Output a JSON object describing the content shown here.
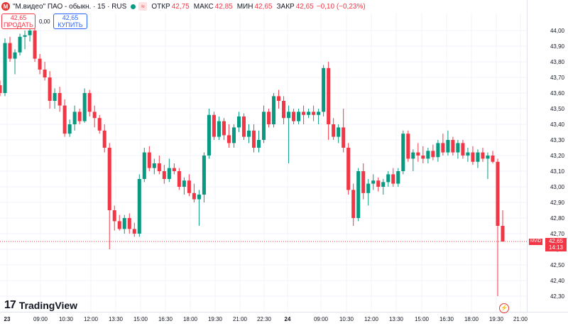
{
  "header": {
    "logo_letter": "М",
    "title": "\"М.видео\" ПАО - обыкн. · 15 · RUS",
    "wave_icon": "≈",
    "open_label": "ОТКР",
    "open_value": "42,75",
    "high_label": "МАКС",
    "high_value": "42,85",
    "low_label": "МИН",
    "low_value": "42,65",
    "close_label": "ЗАКР",
    "close_value": "42,65",
    "change": "−0,10 (−0,23%)"
  },
  "trade": {
    "sell_price": "42,65",
    "sell_label": "ПРОДАТЬ",
    "spread": "0,00",
    "buy_price": "42,65",
    "buy_label": "КУПИТЬ"
  },
  "branding": {
    "logo_mark": "17",
    "name": "TradingView"
  },
  "flash_icon": "⚡",
  "last_price": {
    "symbol": "MVID",
    "price": "42,65",
    "countdown": "14:13"
  },
  "colors": {
    "up": "#089981",
    "down": "#f23645"
  },
  "chart_data": {
    "type": "candlestick",
    "timeframe": "15",
    "ylim": [
      42.22,
      44.06
    ],
    "yticks": [
      "44,00",
      "43,90",
      "43,80",
      "43,70",
      "43,60",
      "43,50",
      "43,40",
      "43,30",
      "43,20",
      "43,10",
      "43,00",
      "42,90",
      "42,80",
      "42,70",
      "42,60",
      "42,50",
      "42,40",
      "42,30"
    ],
    "xticks": [
      "23",
      "09:00",
      "10:30",
      "12:00",
      "13:30",
      "15:00",
      "16:30",
      "18:00",
      "19:30",
      "21:00",
      "22:30",
      "24",
      "09:00",
      "10:30",
      "12:00",
      "13:30",
      "15:00",
      "16:30",
      "18:00",
      "19:30",
      "21:00"
    ],
    "last_price": 42.65,
    "candles": [
      [
        43.65,
        43.68,
        43.58,
        43.6
      ],
      [
        43.6,
        43.95,
        43.58,
        43.92
      ],
      [
        43.92,
        43.96,
        43.8,
        43.82
      ],
      [
        43.82,
        43.88,
        43.72,
        43.86
      ],
      [
        43.86,
        43.98,
        43.84,
        43.96
      ],
      [
        43.96,
        44.0,
        43.88,
        43.97
      ],
      [
        43.97,
        44.02,
        43.93,
        44.0
      ],
      [
        44.0,
        44.02,
        43.8,
        43.82
      ],
      [
        43.82,
        43.85,
        43.72,
        43.75
      ],
      [
        43.75,
        43.8,
        43.68,
        43.7
      ],
      [
        43.7,
        43.74,
        43.5,
        43.55
      ],
      [
        43.55,
        43.63,
        43.5,
        43.6
      ],
      [
        43.6,
        43.64,
        43.48,
        43.52
      ],
      [
        43.52,
        43.56,
        43.32,
        43.34
      ],
      [
        43.34,
        43.43,
        43.32,
        43.4
      ],
      [
        43.4,
        43.52,
        43.36,
        43.48
      ],
      [
        43.48,
        43.5,
        43.4,
        43.42
      ],
      [
        43.42,
        43.63,
        43.41,
        43.6
      ],
      [
        43.6,
        43.62,
        43.45,
        43.48
      ],
      [
        43.48,
        43.52,
        43.38,
        43.44
      ],
      [
        43.44,
        43.46,
        43.34,
        43.36
      ],
      [
        43.36,
        43.4,
        43.22,
        43.25
      ],
      [
        43.25,
        43.28,
        42.6,
        42.85
      ],
      [
        42.85,
        42.88,
        42.72,
        42.78
      ],
      [
        42.78,
        42.82,
        42.72,
        42.73
      ],
      [
        42.73,
        42.82,
        42.7,
        42.8
      ],
      [
        42.8,
        42.83,
        42.7,
        42.73
      ],
      [
        42.73,
        42.77,
        42.68,
        42.7
      ],
      [
        42.7,
        43.08,
        42.68,
        43.05
      ],
      [
        43.05,
        43.25,
        43.03,
        43.22
      ],
      [
        43.22,
        43.26,
        43.1,
        43.12
      ],
      [
        43.12,
        43.18,
        43.08,
        43.15
      ],
      [
        43.15,
        43.2,
        43.08,
        43.1
      ],
      [
        43.1,
        43.14,
        43.02,
        43.05
      ],
      [
        43.05,
        43.18,
        43.03,
        43.12
      ],
      [
        43.12,
        43.15,
        43.08,
        43.1
      ],
      [
        43.1,
        43.12,
        42.98,
        43.0
      ],
      [
        43.0,
        43.06,
        42.95,
        43.04
      ],
      [
        43.04,
        43.08,
        42.94,
        42.96
      ],
      [
        42.96,
        43.02,
        42.9,
        42.92
      ],
      [
        42.92,
        42.98,
        42.75,
        42.95
      ],
      [
        42.95,
        43.22,
        42.9,
        43.2
      ],
      [
        43.2,
        43.5,
        43.18,
        43.46
      ],
      [
        43.46,
        43.48,
        43.3,
        43.32
      ],
      [
        43.32,
        43.45,
        43.3,
        43.42
      ],
      [
        43.42,
        43.44,
        43.3,
        43.33
      ],
      [
        43.33,
        43.4,
        43.25,
        43.28
      ],
      [
        43.28,
        43.4,
        43.25,
        43.38
      ],
      [
        43.38,
        43.48,
        43.35,
        43.45
      ],
      [
        43.45,
        43.47,
        43.3,
        43.32
      ],
      [
        43.32,
        43.4,
        43.28,
        43.36
      ],
      [
        43.36,
        43.4,
        43.22,
        43.25
      ],
      [
        43.25,
        43.36,
        43.22,
        43.3
      ],
      [
        43.3,
        43.52,
        43.28,
        43.48
      ],
      [
        43.48,
        43.5,
        43.38,
        43.4
      ],
      [
        43.4,
        43.6,
        43.38,
        43.58
      ],
      [
        43.58,
        43.62,
        43.5,
        43.55
      ],
      [
        43.55,
        43.58,
        43.4,
        43.44
      ],
      [
        43.44,
        43.52,
        43.15,
        43.48
      ],
      [
        43.48,
        43.5,
        43.4,
        43.42
      ],
      [
        43.42,
        43.5,
        43.4,
        43.48
      ],
      [
        43.48,
        43.52,
        43.4,
        43.46
      ],
      [
        43.46,
        43.5,
        43.44,
        43.48
      ],
      [
        43.48,
        43.52,
        43.42,
        43.46
      ],
      [
        43.46,
        43.5,
        43.4,
        43.48
      ],
      [
        43.48,
        43.78,
        43.45,
        43.76
      ],
      [
        43.76,
        43.8,
        43.3,
        43.4
      ],
      [
        43.4,
        43.44,
        43.3,
        43.32
      ],
      [
        43.32,
        43.4,
        43.28,
        43.38
      ],
      [
        43.38,
        43.5,
        43.22,
        43.25
      ],
      [
        43.25,
        43.28,
        42.95,
        42.98
      ],
      [
        42.98,
        43.02,
        42.75,
        42.8
      ],
      [
        42.8,
        43.12,
        42.78,
        43.1
      ],
      [
        43.1,
        43.15,
        42.92,
        42.96
      ],
      [
        42.96,
        43.05,
        42.88,
        43.02
      ],
      [
        43.02,
        43.08,
        42.98,
        43.04
      ],
      [
        43.04,
        43.06,
        42.97,
        43.0
      ],
      [
        43.0,
        43.05,
        42.95,
        43.03
      ],
      [
        43.03,
        43.1,
        43.0,
        43.08
      ],
      [
        43.08,
        43.12,
        43.0,
        43.02
      ],
      [
        43.02,
        43.12,
        43.0,
        43.1
      ],
      [
        43.1,
        43.36,
        43.08,
        43.34
      ],
      [
        43.34,
        43.36,
        43.16,
        43.18
      ],
      [
        43.18,
        43.24,
        43.1,
        43.22
      ],
      [
        43.22,
        43.28,
        43.16,
        43.2
      ],
      [
        43.2,
        43.26,
        43.15,
        43.18
      ],
      [
        43.18,
        43.25,
        43.15,
        43.23
      ],
      [
        43.23,
        43.27,
        43.17,
        43.19
      ],
      [
        43.19,
        43.3,
        43.16,
        43.28
      ],
      [
        43.28,
        43.34,
        43.2,
        43.22
      ],
      [
        43.22,
        43.36,
        43.2,
        43.3
      ],
      [
        43.3,
        43.32,
        43.2,
        43.22
      ],
      [
        43.22,
        43.3,
        43.18,
        43.28
      ],
      [
        43.28,
        43.3,
        43.18,
        43.2
      ],
      [
        43.2,
        43.25,
        43.16,
        43.22
      ],
      [
        43.22,
        43.26,
        43.14,
        43.16
      ],
      [
        43.16,
        43.24,
        43.12,
        43.22
      ],
      [
        43.22,
        43.25,
        43.16,
        43.18
      ],
      [
        43.18,
        43.22,
        43.05,
        43.2
      ],
      [
        43.2,
        43.23,
        43.15,
        43.16
      ],
      [
        43.16,
        43.18,
        42.3,
        42.75
      ],
      [
        42.75,
        42.85,
        42.65,
        42.65
      ]
    ]
  }
}
